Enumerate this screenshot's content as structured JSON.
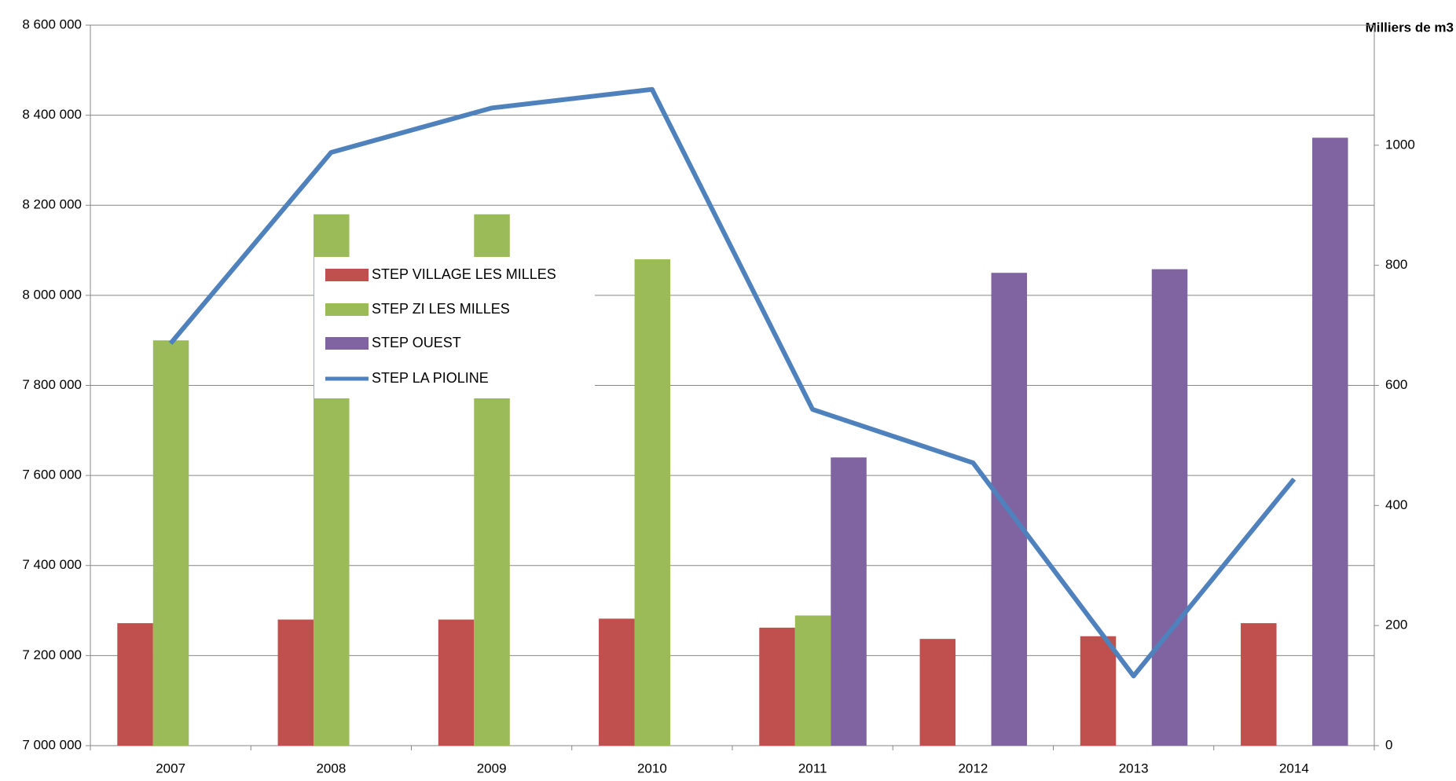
{
  "chart_data": {
    "type": "bar",
    "y2_label": "Milliers de m3",
    "categories": [
      "2007",
      "2008",
      "2009",
      "2010",
      "2011",
      "2012",
      "2013",
      "2014"
    ],
    "series": [
      {
        "name": "STEP VILLAGE  LES MILLES",
        "color": "#c0504d",
        "values": [
          7272000,
          7280000,
          7280000,
          7282000,
          7262000,
          7237000,
          7243000,
          7272000
        ]
      },
      {
        "name": "STEP ZI LES MILLES",
        "color": "#9bbb59",
        "values": [
          7900000,
          8180000,
          8180000,
          8080000,
          7289000,
          null,
          null,
          null
        ]
      },
      {
        "name": "STEP OUEST",
        "color": "#8064a2",
        "values": [
          null,
          null,
          null,
          null,
          7640000,
          8050000,
          8058000,
          8350000
        ]
      },
      {
        "name": "STEP LA PIOLINE",
        "color": "#4f81bd",
        "type": "line",
        "axis": "y2",
        "values": [
          670,
          988,
          1062,
          1093,
          560,
          471,
          116,
          444
        ]
      }
    ],
    "ylim": [
      7000000,
      8600000
    ],
    "yticks": [
      {
        "value": 7000000,
        "label": "7 000 000"
      },
      {
        "value": 7200000,
        "label": "7 200 000"
      },
      {
        "value": 7400000,
        "label": "7 400 000"
      },
      {
        "value": 7600000,
        "label": "7 600 000"
      },
      {
        "value": 7800000,
        "label": "7 800 000"
      },
      {
        "value": 8000000,
        "label": "8 000 000"
      },
      {
        "value": 8200000,
        "label": "8 200 000"
      },
      {
        "value": 8400000,
        "label": "8 400 000"
      },
      {
        "value": 8600000,
        "label": "8 600 000"
      }
    ],
    "y2lim": [
      0,
      1200
    ],
    "y2ticks": [
      0,
      200,
      400,
      600,
      800,
      1000
    ],
    "grid": true
  }
}
